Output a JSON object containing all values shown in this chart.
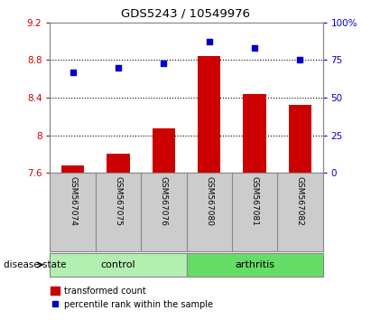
{
  "title": "GDS5243 / 10549976",
  "samples": [
    "GSM567074",
    "GSM567075",
    "GSM567076",
    "GSM567080",
    "GSM567081",
    "GSM567082"
  ],
  "red_values": [
    7.68,
    7.8,
    8.07,
    8.84,
    8.44,
    8.32
  ],
  "blue_values": [
    67,
    70,
    73,
    87,
    83,
    75
  ],
  "ylim_left": [
    7.6,
    9.2
  ],
  "ylim_right": [
    0,
    100
  ],
  "yticks_left": [
    7.6,
    8.0,
    8.4,
    8.8,
    9.2
  ],
  "ytick_labels_left": [
    "7.6",
    "8",
    "8.4",
    "8.8",
    "9.2"
  ],
  "yticks_right": [
    0,
    25,
    50,
    75,
    100
  ],
  "ytick_labels_right": [
    "0",
    "25",
    "50",
    "75",
    "100%"
  ],
  "control_color": "#b2f0b2",
  "arthritis_color": "#66dd66",
  "sample_box_color": "#cccccc",
  "bar_color": "#cc0000",
  "dot_color": "#0000cc",
  "legend_bar_label": "transformed count",
  "legend_dot_label": "percentile rank within the sample",
  "disease_state_label": "disease state",
  "axis_label_color_left": "#cc0000",
  "axis_label_color_right": "#0000cc",
  "bar_width": 0.5,
  "grid_dotted_at": [
    8.0,
    8.4,
    8.8
  ],
  "spine_color": "#888888"
}
